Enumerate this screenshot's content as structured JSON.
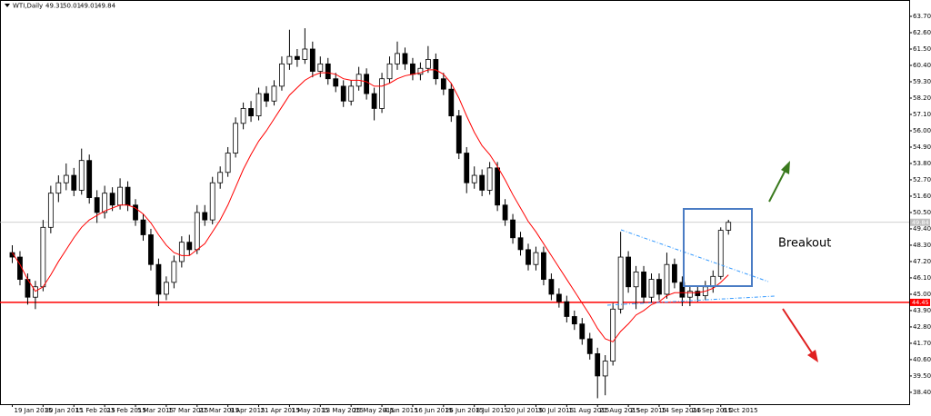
{
  "chart_data": {
    "type": "candlestick",
    "header": {
      "symbol": "WTI,Daily"
    },
    "annotation": "Breakout",
    "ylim": [
      37.6,
      64.8
    ],
    "yticks": [
      {
        "value": 63.7,
        "label": "63.70"
      },
      {
        "value": 62.6,
        "label": "62.60"
      },
      {
        "value": 61.5,
        "label": "61.50"
      },
      {
        "value": 60.4,
        "label": "60.40"
      },
      {
        "value": 59.3,
        "label": "59.30"
      },
      {
        "value": 58.2,
        "label": "58.20"
      },
      {
        "value": 57.1,
        "label": "57.10"
      },
      {
        "value": 56.0,
        "label": "56.00"
      },
      {
        "value": 54.9,
        "label": "54.90"
      },
      {
        "value": 53.8,
        "label": "53.80"
      },
      {
        "value": 52.7,
        "label": "52.70"
      },
      {
        "value": 51.6,
        "label": "51.60"
      },
      {
        "value": 50.5,
        "label": "50.50"
      },
      {
        "value": 49.4,
        "label": "49.40"
      },
      {
        "value": 48.3,
        "label": "48.30"
      },
      {
        "value": 47.2,
        "label": "47.20"
      },
      {
        "value": 46.1,
        "label": "46.10"
      },
      {
        "value": 45.0,
        "label": "45.00"
      },
      {
        "value": 43.9,
        "label": "43.90"
      },
      {
        "value": 42.8,
        "label": "42.80"
      },
      {
        "value": 41.7,
        "label": "41.70"
      },
      {
        "value": 40.6,
        "label": "40.60"
      },
      {
        "value": 39.5,
        "label": "39.50"
      },
      {
        "value": 38.4,
        "label": "38.40"
      }
    ],
    "categories": [
      "19 Jan 2015",
      null,
      null,
      null,
      "30 Jan 2015",
      null,
      null,
      null,
      "11 Feb 2015",
      null,
      null,
      null,
      "23 Feb 2015",
      null,
      null,
      null,
      "5 Mar 2015",
      null,
      null,
      null,
      "17 Mar 2015",
      null,
      null,
      null,
      "27 Mar 2015",
      null,
      null,
      null,
      "9 Apr 2015",
      null,
      null,
      null,
      "21 Apr 2015",
      null,
      null,
      null,
      "1 May 2015",
      null,
      null,
      null,
      "13 May 2015",
      null,
      null,
      null,
      "25 May 2015",
      null,
      null,
      null,
      "4 Jun 2015",
      null,
      null,
      null,
      "16 Jun 2015",
      null,
      null,
      null,
      "26 Jun 2015",
      null,
      null,
      null,
      "8 Jul 2015",
      null,
      null,
      null,
      "20 Jul 2015",
      null,
      null,
      null,
      "30 Jul 2015",
      null,
      null,
      null,
      "11 Aug 2015",
      null,
      null,
      null,
      "21 Aug 2015",
      null,
      null,
      null,
      "2 Sep 2015",
      null,
      null,
      null,
      "14 Sep 2015",
      null,
      null,
      null,
      "24 Sep 2015",
      null,
      null,
      null,
      "6 Oct 2015",
      null
    ],
    "candles": [
      [
        47.8,
        48.3,
        47.1,
        47.5
      ],
      [
        47.5,
        47.9,
        45.6,
        46.0
      ],
      [
        46.0,
        46.4,
        44.3,
        44.8
      ],
      [
        44.8,
        45.9,
        44.0,
        45.5
      ],
      [
        45.5,
        50.0,
        45.2,
        49.5
      ],
      [
        49.5,
        52.3,
        49.1,
        51.8
      ],
      [
        51.8,
        53.0,
        51.2,
        52.5
      ],
      [
        52.5,
        53.8,
        52.0,
        53.0
      ],
      [
        53.0,
        53.5,
        51.6,
        52.0
      ],
      [
        52.0,
        54.8,
        51.7,
        54.0
      ],
      [
        54.0,
        54.4,
        51.1,
        51.5
      ],
      [
        51.5,
        52.0,
        49.8,
        50.5
      ],
      [
        50.5,
        52.3,
        50.1,
        51.8
      ],
      [
        51.8,
        52.2,
        50.6,
        51.0
      ],
      [
        51.0,
        52.8,
        50.7,
        52.2
      ],
      [
        52.2,
        52.6,
        50.6,
        51.0
      ],
      [
        51.0,
        51.4,
        49.6,
        50.0
      ],
      [
        50.0,
        50.4,
        48.6,
        49.0
      ],
      [
        49.0,
        49.4,
        46.6,
        47.0
      ],
      [
        47.0,
        47.4,
        44.2,
        45.0
      ],
      [
        45.0,
        46.2,
        44.6,
        45.8
      ],
      [
        45.8,
        47.6,
        45.4,
        47.2
      ],
      [
        47.2,
        48.9,
        46.8,
        48.5
      ],
      [
        48.5,
        49.0,
        47.6,
        48.0
      ],
      [
        48.0,
        51.0,
        47.7,
        50.5
      ],
      [
        50.5,
        51.0,
        49.6,
        50.0
      ],
      [
        50.0,
        52.9,
        49.7,
        52.5
      ],
      [
        52.5,
        53.6,
        52.1,
        53.2
      ],
      [
        53.2,
        54.9,
        52.9,
        54.5
      ],
      [
        54.5,
        56.9,
        54.2,
        56.5
      ],
      [
        56.5,
        57.9,
        56.1,
        57.5
      ],
      [
        57.5,
        58.0,
        56.6,
        57.0
      ],
      [
        57.0,
        58.9,
        56.7,
        58.5
      ],
      [
        58.5,
        59.0,
        57.6,
        58.0
      ],
      [
        58.0,
        59.4,
        57.7,
        59.0
      ],
      [
        59.0,
        61.0,
        58.7,
        60.5
      ],
      [
        60.5,
        62.8,
        60.1,
        61.0
      ],
      [
        61.0,
        61.5,
        60.3,
        60.8
      ],
      [
        60.8,
        62.9,
        60.5,
        61.5
      ],
      [
        61.5,
        62.0,
        59.6,
        60.0
      ],
      [
        60.0,
        61.0,
        59.6,
        60.5
      ],
      [
        60.5,
        60.9,
        59.1,
        59.5
      ],
      [
        59.5,
        59.9,
        58.6,
        59.0
      ],
      [
        59.0,
        59.4,
        57.6,
        58.0
      ],
      [
        58.0,
        59.4,
        57.7,
        59.0
      ],
      [
        59.0,
        60.3,
        58.7,
        59.8
      ],
      [
        59.8,
        60.2,
        58.1,
        58.5
      ],
      [
        58.5,
        58.9,
        56.7,
        57.5
      ],
      [
        57.5,
        59.9,
        57.2,
        59.5
      ],
      [
        59.5,
        61.0,
        59.2,
        60.5
      ],
      [
        60.5,
        62.0,
        60.1,
        61.2
      ],
      [
        61.2,
        61.6,
        60.1,
        60.5
      ],
      [
        60.5,
        60.9,
        59.4,
        59.8
      ],
      [
        59.8,
        60.6,
        59.4,
        60.2
      ],
      [
        60.2,
        61.7,
        59.9,
        60.8
      ],
      [
        60.8,
        61.2,
        59.1,
        59.5
      ],
      [
        59.5,
        59.9,
        58.4,
        58.8
      ],
      [
        58.8,
        59.2,
        56.6,
        57.0
      ],
      [
        57.0,
        57.4,
        54.1,
        54.5
      ],
      [
        54.5,
        54.9,
        51.8,
        52.5
      ],
      [
        52.5,
        53.6,
        52.1,
        53.0
      ],
      [
        53.0,
        53.4,
        51.6,
        52.0
      ],
      [
        52.0,
        53.9,
        51.7,
        53.5
      ],
      [
        53.5,
        53.9,
        50.6,
        51.0
      ],
      [
        51.0,
        51.4,
        49.6,
        50.0
      ],
      [
        50.0,
        50.4,
        48.4,
        48.8
      ],
      [
        48.8,
        49.2,
        47.6,
        48.0
      ],
      [
        48.0,
        48.4,
        46.6,
        47.0
      ],
      [
        47.0,
        48.2,
        46.6,
        47.8
      ],
      [
        47.8,
        48.2,
        45.6,
        46.0
      ],
      [
        46.0,
        46.4,
        44.6,
        45.0
      ],
      [
        45.0,
        45.4,
        44.1,
        44.5
      ],
      [
        44.5,
        44.9,
        43.1,
        43.5
      ],
      [
        43.5,
        43.9,
        42.6,
        43.0
      ],
      [
        43.0,
        43.4,
        41.6,
        42.0
      ],
      [
        42.0,
        42.4,
        40.6,
        41.0
      ],
      [
        41.0,
        41.4,
        38.0,
        39.5
      ],
      [
        39.5,
        40.9,
        38.2,
        40.5
      ],
      [
        40.5,
        44.4,
        40.2,
        44.0
      ],
      [
        44.0,
        49.2,
        43.7,
        47.5
      ],
      [
        47.5,
        47.9,
        45.1,
        45.5
      ],
      [
        45.5,
        46.9,
        44.0,
        46.5
      ],
      [
        46.5,
        46.9,
        44.4,
        44.8
      ],
      [
        44.8,
        46.4,
        44.4,
        46.0
      ],
      [
        46.0,
        46.4,
        44.6,
        45.0
      ],
      [
        45.0,
        47.8,
        44.7,
        47.0
      ],
      [
        47.0,
        47.4,
        45.4,
        45.8
      ],
      [
        45.8,
        46.2,
        44.2,
        44.8
      ],
      [
        44.8,
        45.6,
        44.2,
        45.2
      ],
      [
        45.2,
        45.6,
        44.5,
        44.9
      ],
      [
        44.9,
        45.9,
        44.6,
        45.5
      ],
      [
        45.5,
        46.6,
        45.1,
        46.2
      ],
      [
        46.2,
        49.5,
        46.0,
        49.3
      ],
      [
        49.31,
        50.01,
        49.01,
        49.84
      ]
    ],
    "ma": {
      "color": "#ff0000",
      "values": [
        47.8,
        47.0,
        46.0,
        45.2,
        45.5,
        46.3,
        47.2,
        48.0,
        48.8,
        49.5,
        50.0,
        50.3,
        50.6,
        50.8,
        51.0,
        51.0,
        50.8,
        50.4,
        49.8,
        49.0,
        48.3,
        47.8,
        47.6,
        47.6,
        48.0,
        48.4,
        49.2,
        50.0,
        51.0,
        52.2,
        53.4,
        54.4,
        55.3,
        56.0,
        56.8,
        57.6,
        58.4,
        58.9,
        59.4,
        59.7,
        59.9,
        59.9,
        59.8,
        59.5,
        59.4,
        59.4,
        59.3,
        59.0,
        59.0,
        59.2,
        59.5,
        59.7,
        59.8,
        59.9,
        60.1,
        60.1,
        59.8,
        59.2,
        58.2,
        57.0,
        55.9,
        55.0,
        54.4,
        53.6,
        52.7,
        51.7,
        50.8,
        49.9,
        49.2,
        48.4,
        47.6,
        46.8,
        46.0,
        45.2,
        44.4,
        43.6,
        42.7,
        42.0,
        41.8,
        42.5,
        43.0,
        43.6,
        43.9,
        44.3,
        44.5,
        44.9,
        45.1,
        45.1,
        45.1,
        45.1,
        45.2,
        45.4,
        45.8,
        46.3
      ]
    },
    "hlines": [
      {
        "value": 49.84,
        "color": "#c0c0c0"
      },
      {
        "value": 44.45,
        "color": "#ff0000"
      }
    ],
    "bull_color": "#ffffff",
    "bear_color": "#000000"
  }
}
